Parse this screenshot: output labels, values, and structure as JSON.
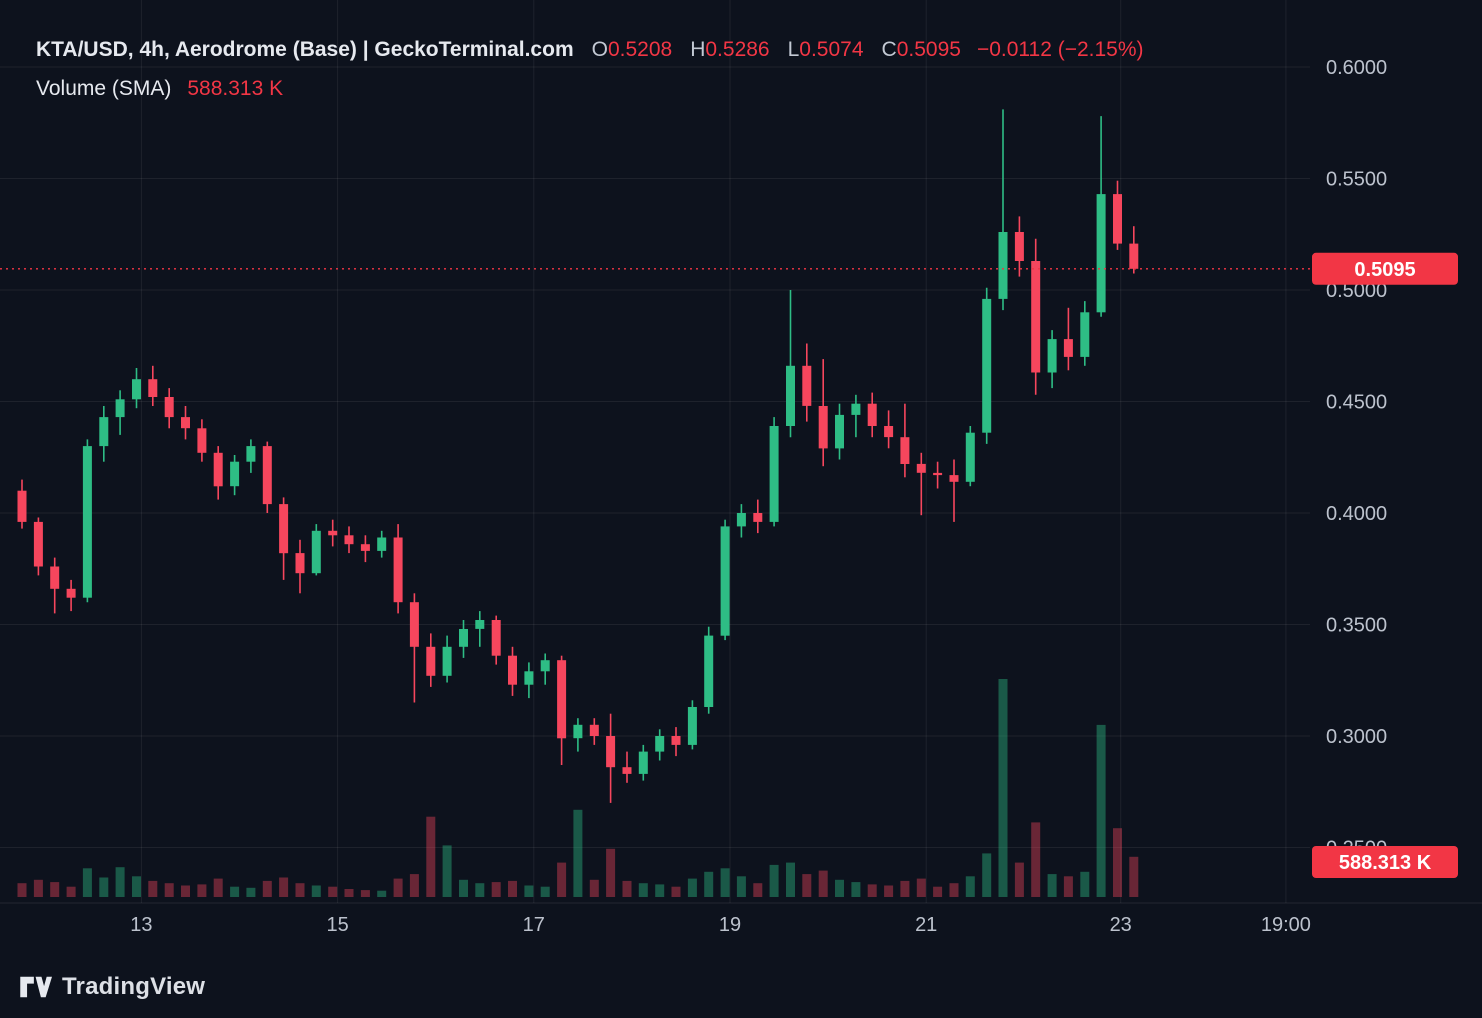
{
  "legend": {
    "title": "KTA/USD, 4h, Aerodrome (Base) | GeckoTerminal.com",
    "ohlc": [
      {
        "label": "O",
        "value": "0.5208"
      },
      {
        "label": "H",
        "value": "0.5286"
      },
      {
        "label": "L",
        "value": "0.5074"
      },
      {
        "label": "C",
        "value": "0.5095"
      }
    ],
    "change": "−0.0112 (−2.15%)",
    "volume_label": "Volume (SMA)",
    "volume_value": "588.313 K"
  },
  "footer": {
    "brand": "TradingView"
  },
  "colors": {
    "background": "#0d121d",
    "up": "#2ebd85",
    "down": "#f6465d",
    "accent_red": "#f23645"
  },
  "chart_data": {
    "type": "candlestick",
    "title": "KTA/USD, 4h, Aerodrome (Base) | GeckoTerminal.com",
    "interval": "4h",
    "last_price": 0.5095,
    "last_price_label": "0.5095",
    "volume_badge_label": "588.313 K",
    "price_axis_range": [
      0.25,
      0.62
    ],
    "grid": true,
    "price_ticks": [
      {
        "value": 0.6,
        "label": "0.6000"
      },
      {
        "value": 0.55,
        "label": "0.5500"
      },
      {
        "value": 0.5,
        "label": "0.5000"
      },
      {
        "value": 0.45,
        "label": "0.4500"
      },
      {
        "value": 0.4,
        "label": "0.4000"
      },
      {
        "value": 0.35,
        "label": "0.3500"
      },
      {
        "value": 0.3,
        "label": "0.3000"
      },
      {
        "value": 0.25,
        "label": "0.2500"
      }
    ],
    "time_ticks": [
      {
        "index": 7.3,
        "label": "13"
      },
      {
        "index": 19.3,
        "label": "15"
      },
      {
        "index": 31.3,
        "label": "17"
      },
      {
        "index": 43.3,
        "label": "19"
      },
      {
        "index": 55.3,
        "label": "21"
      },
      {
        "index": 67.2,
        "label": "23"
      },
      {
        "index": 77.3,
        "label": "19:00"
      }
    ],
    "candles_format": [
      "open",
      "high",
      "low",
      "close",
      "volume_k"
    ],
    "candles": [
      [
        0.41,
        0.415,
        0.393,
        0.396,
        120
      ],
      [
        0.396,
        0.398,
        0.372,
        0.376,
        150
      ],
      [
        0.376,
        0.38,
        0.355,
        0.366,
        130
      ],
      [
        0.366,
        0.37,
        0.356,
        0.362,
        90
      ],
      [
        0.362,
        0.433,
        0.36,
        0.43,
        250
      ],
      [
        0.43,
        0.448,
        0.423,
        0.443,
        170
      ],
      [
        0.443,
        0.455,
        0.435,
        0.451,
        260
      ],
      [
        0.451,
        0.465,
        0.447,
        0.46,
        180
      ],
      [
        0.46,
        0.466,
        0.448,
        0.452,
        140
      ],
      [
        0.452,
        0.456,
        0.438,
        0.443,
        120
      ],
      [
        0.443,
        0.448,
        0.433,
        0.438,
        100
      ],
      [
        0.438,
        0.442,
        0.423,
        0.427,
        110
      ],
      [
        0.427,
        0.43,
        0.406,
        0.412,
        160
      ],
      [
        0.412,
        0.426,
        0.408,
        0.423,
        90
      ],
      [
        0.423,
        0.433,
        0.418,
        0.43,
        80
      ],
      [
        0.43,
        0.432,
        0.4,
        0.404,
        140
      ],
      [
        0.404,
        0.407,
        0.37,
        0.382,
        170
      ],
      [
        0.382,
        0.388,
        0.364,
        0.373,
        120
      ],
      [
        0.373,
        0.395,
        0.372,
        0.392,
        100
      ],
      [
        0.392,
        0.397,
        0.385,
        0.39,
        90
      ],
      [
        0.39,
        0.394,
        0.382,
        0.386,
        70
      ],
      [
        0.386,
        0.39,
        0.378,
        0.383,
        60
      ],
      [
        0.383,
        0.392,
        0.38,
        0.389,
        55
      ],
      [
        0.389,
        0.395,
        0.355,
        0.36,
        160
      ],
      [
        0.36,
        0.364,
        0.315,
        0.34,
        200
      ],
      [
        0.34,
        0.346,
        0.322,
        0.327,
        700
      ],
      [
        0.327,
        0.345,
        0.324,
        0.34,
        450
      ],
      [
        0.34,
        0.352,
        0.335,
        0.348,
        150
      ],
      [
        0.348,
        0.356,
        0.34,
        0.352,
        120
      ],
      [
        0.352,
        0.354,
        0.332,
        0.336,
        130
      ],
      [
        0.336,
        0.34,
        0.318,
        0.323,
        140
      ],
      [
        0.323,
        0.333,
        0.317,
        0.329,
        100
      ],
      [
        0.329,
        0.337,
        0.323,
        0.334,
        90
      ],
      [
        0.334,
        0.336,
        0.287,
        0.299,
        300
      ],
      [
        0.299,
        0.308,
        0.293,
        0.305,
        760
      ],
      [
        0.305,
        0.308,
        0.296,
        0.3,
        150
      ],
      [
        0.3,
        0.31,
        0.27,
        0.286,
        420
      ],
      [
        0.286,
        0.293,
        0.279,
        0.283,
        140
      ],
      [
        0.283,
        0.296,
        0.28,
        0.293,
        120
      ],
      [
        0.293,
        0.303,
        0.289,
        0.3,
        110
      ],
      [
        0.3,
        0.304,
        0.291,
        0.296,
        90
      ],
      [
        0.296,
        0.316,
        0.294,
        0.313,
        160
      ],
      [
        0.313,
        0.349,
        0.31,
        0.345,
        220
      ],
      [
        0.345,
        0.397,
        0.343,
        0.394,
        250
      ],
      [
        0.394,
        0.404,
        0.389,
        0.4,
        180
      ],
      [
        0.4,
        0.406,
        0.391,
        0.396,
        120
      ],
      [
        0.396,
        0.443,
        0.394,
        0.439,
        280
      ],
      [
        0.439,
        0.5,
        0.434,
        0.466,
        300
      ],
      [
        0.466,
        0.476,
        0.441,
        0.448,
        200
      ],
      [
        0.448,
        0.469,
        0.421,
        0.429,
        230
      ],
      [
        0.429,
        0.449,
        0.424,
        0.444,
        150
      ],
      [
        0.444,
        0.453,
        0.434,
        0.449,
        130
      ],
      [
        0.449,
        0.454,
        0.434,
        0.439,
        110
      ],
      [
        0.439,
        0.446,
        0.429,
        0.434,
        100
      ],
      [
        0.434,
        0.449,
        0.416,
        0.422,
        140
      ],
      [
        0.422,
        0.427,
        0.399,
        0.418,
        160
      ],
      [
        0.418,
        0.423,
        0.411,
        0.417,
        90
      ],
      [
        0.417,
        0.424,
        0.396,
        0.414,
        120
      ],
      [
        0.414,
        0.439,
        0.412,
        0.436,
        180
      ],
      [
        0.436,
        0.501,
        0.431,
        0.496,
        380
      ],
      [
        0.496,
        0.581,
        0.491,
        0.526,
        1900
      ],
      [
        0.526,
        0.533,
        0.506,
        0.513,
        300
      ],
      [
        0.513,
        0.523,
        0.453,
        0.463,
        650
      ],
      [
        0.463,
        0.482,
        0.456,
        0.478,
        200
      ],
      [
        0.478,
        0.492,
        0.464,
        0.47,
        180
      ],
      [
        0.47,
        0.495,
        0.466,
        0.49,
        220
      ],
      [
        0.49,
        0.578,
        0.488,
        0.543,
        1500
      ],
      [
        0.543,
        0.549,
        0.518,
        0.5208,
        600
      ],
      [
        0.5208,
        0.5286,
        0.5074,
        0.5095,
        350
      ]
    ]
  }
}
